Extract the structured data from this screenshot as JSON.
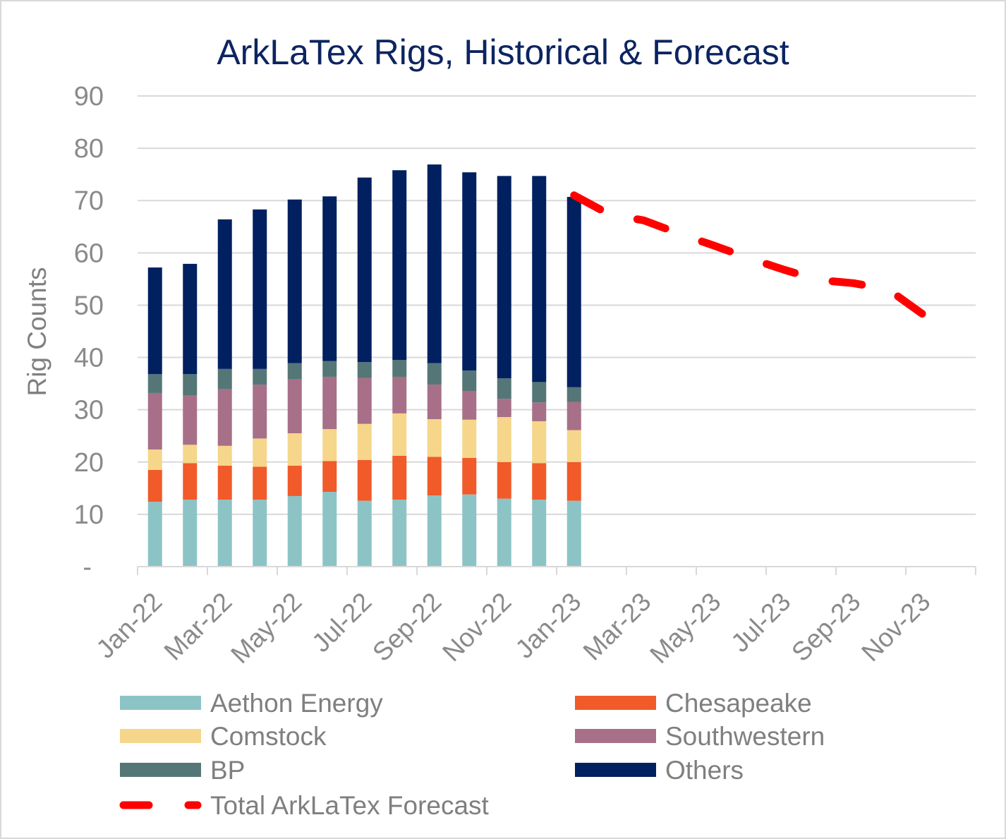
{
  "chart_data": {
    "type": "bar",
    "stacked": true,
    "title": "ArkLaTex Rigs, Historical & Forecast",
    "ylabel": "Rig Counts",
    "ylim": [
      0,
      90
    ],
    "grid": true,
    "legend": "bottom",
    "y_ticks": [
      {
        "value": 0,
        "label": "-"
      },
      {
        "value": 10,
        "label": "10"
      },
      {
        "value": 20,
        "label": "20"
      },
      {
        "value": 30,
        "label": "30"
      },
      {
        "value": 40,
        "label": "40"
      },
      {
        "value": 50,
        "label": "50"
      },
      {
        "value": 60,
        "label": "60"
      },
      {
        "value": 70,
        "label": "70"
      },
      {
        "value": 80,
        "label": "80"
      },
      {
        "value": 90,
        "label": "90"
      }
    ],
    "x_axis": {
      "total_months": 24,
      "months_per_label": 2,
      "labels": [
        "Jan-22",
        "Mar-22",
        "May-22",
        "Jul-22",
        "Sep-22",
        "Nov-22",
        "Jan-23",
        "Mar-23",
        "May-23",
        "Jul-23",
        "Sep-23",
        "Nov-23"
      ]
    },
    "series": [
      {
        "name": "Aethon Energy",
        "type": "bar",
        "color": "#8CC4C6",
        "start_month": 0,
        "values": [
          12.4,
          12.8,
          12.8,
          12.8,
          13.5,
          14.3,
          12.6,
          12.8,
          13.6,
          13.8,
          13.0,
          12.8,
          12.6
        ]
      },
      {
        "name": "Chesapeake",
        "type": "bar",
        "color": "#F15A29",
        "start_month": 0,
        "values": [
          6.1,
          7.0,
          6.5,
          6.3,
          5.8,
          5.9,
          7.8,
          8.4,
          7.4,
          7.0,
          7.0,
          7.0,
          7.4
        ]
      },
      {
        "name": "Comstock",
        "type": "bar",
        "color": "#F5D68A",
        "start_month": 0,
        "values": [
          3.9,
          3.5,
          3.8,
          5.4,
          6.2,
          6.1,
          6.9,
          8.1,
          7.2,
          7.3,
          8.6,
          8.0,
          6.1
        ]
      },
      {
        "name": "Southwestern",
        "type": "bar",
        "color": "#A77088",
        "start_month": 0,
        "values": [
          10.8,
          9.4,
          10.8,
          10.3,
          10.3,
          10.0,
          8.8,
          7.0,
          6.6,
          5.5,
          3.5,
          3.6,
          5.4
        ]
      },
      {
        "name": "BP",
        "type": "bar",
        "color": "#557676",
        "start_month": 0,
        "values": [
          3.6,
          4.1,
          3.9,
          3.0,
          3.1,
          3.0,
          3.0,
          3.2,
          4.1,
          3.9,
          3.9,
          3.9,
          2.8
        ]
      },
      {
        "name": "Others",
        "type": "bar",
        "color": "#002060",
        "start_month": 0,
        "values": [
          20.4,
          21.1,
          28.6,
          30.5,
          31.3,
          31.5,
          35.3,
          36.3,
          38.0,
          37.9,
          38.7,
          39.4,
          36.4
        ]
      },
      {
        "name": "Total ArkLaTex Forecast",
        "type": "line",
        "color": "#FF0000",
        "start_month": 12,
        "values": [
          71.0,
          67.4,
          66.2,
          63.7,
          61.4,
          59.0,
          56.8,
          54.8,
          54.2,
          53.0,
          48.2
        ]
      }
    ]
  }
}
